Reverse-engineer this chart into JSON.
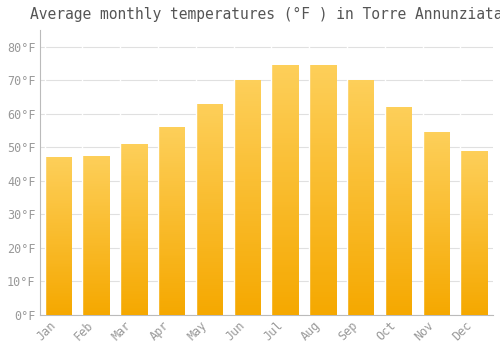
{
  "title": "Average monthly temperatures (°F ) in Torre Annunziata",
  "months": [
    "Jan",
    "Feb",
    "Mar",
    "Apr",
    "May",
    "Jun",
    "Jul",
    "Aug",
    "Sep",
    "Oct",
    "Nov",
    "Dec"
  ],
  "values": [
    47,
    47.5,
    51,
    56,
    63,
    70,
    74.5,
    74.5,
    70,
    62,
    54.5,
    49
  ],
  "bar_color_top": "#FDCF5A",
  "bar_color_bottom": "#F5A800",
  "background_color": "#FFFFFF",
  "grid_color": "#E0E0E0",
  "tick_label_color": "#999999",
  "title_color": "#555555",
  "ylim": [
    0,
    85
  ],
  "yticks": [
    0,
    10,
    20,
    30,
    40,
    50,
    60,
    70,
    80
  ],
  "ytick_labels": [
    "0°F",
    "10°F",
    "20°F",
    "30°F",
    "40°F",
    "50°F",
    "60°F",
    "70°F",
    "80°F"
  ],
  "title_fontsize": 10.5,
  "tick_fontsize": 8.5
}
